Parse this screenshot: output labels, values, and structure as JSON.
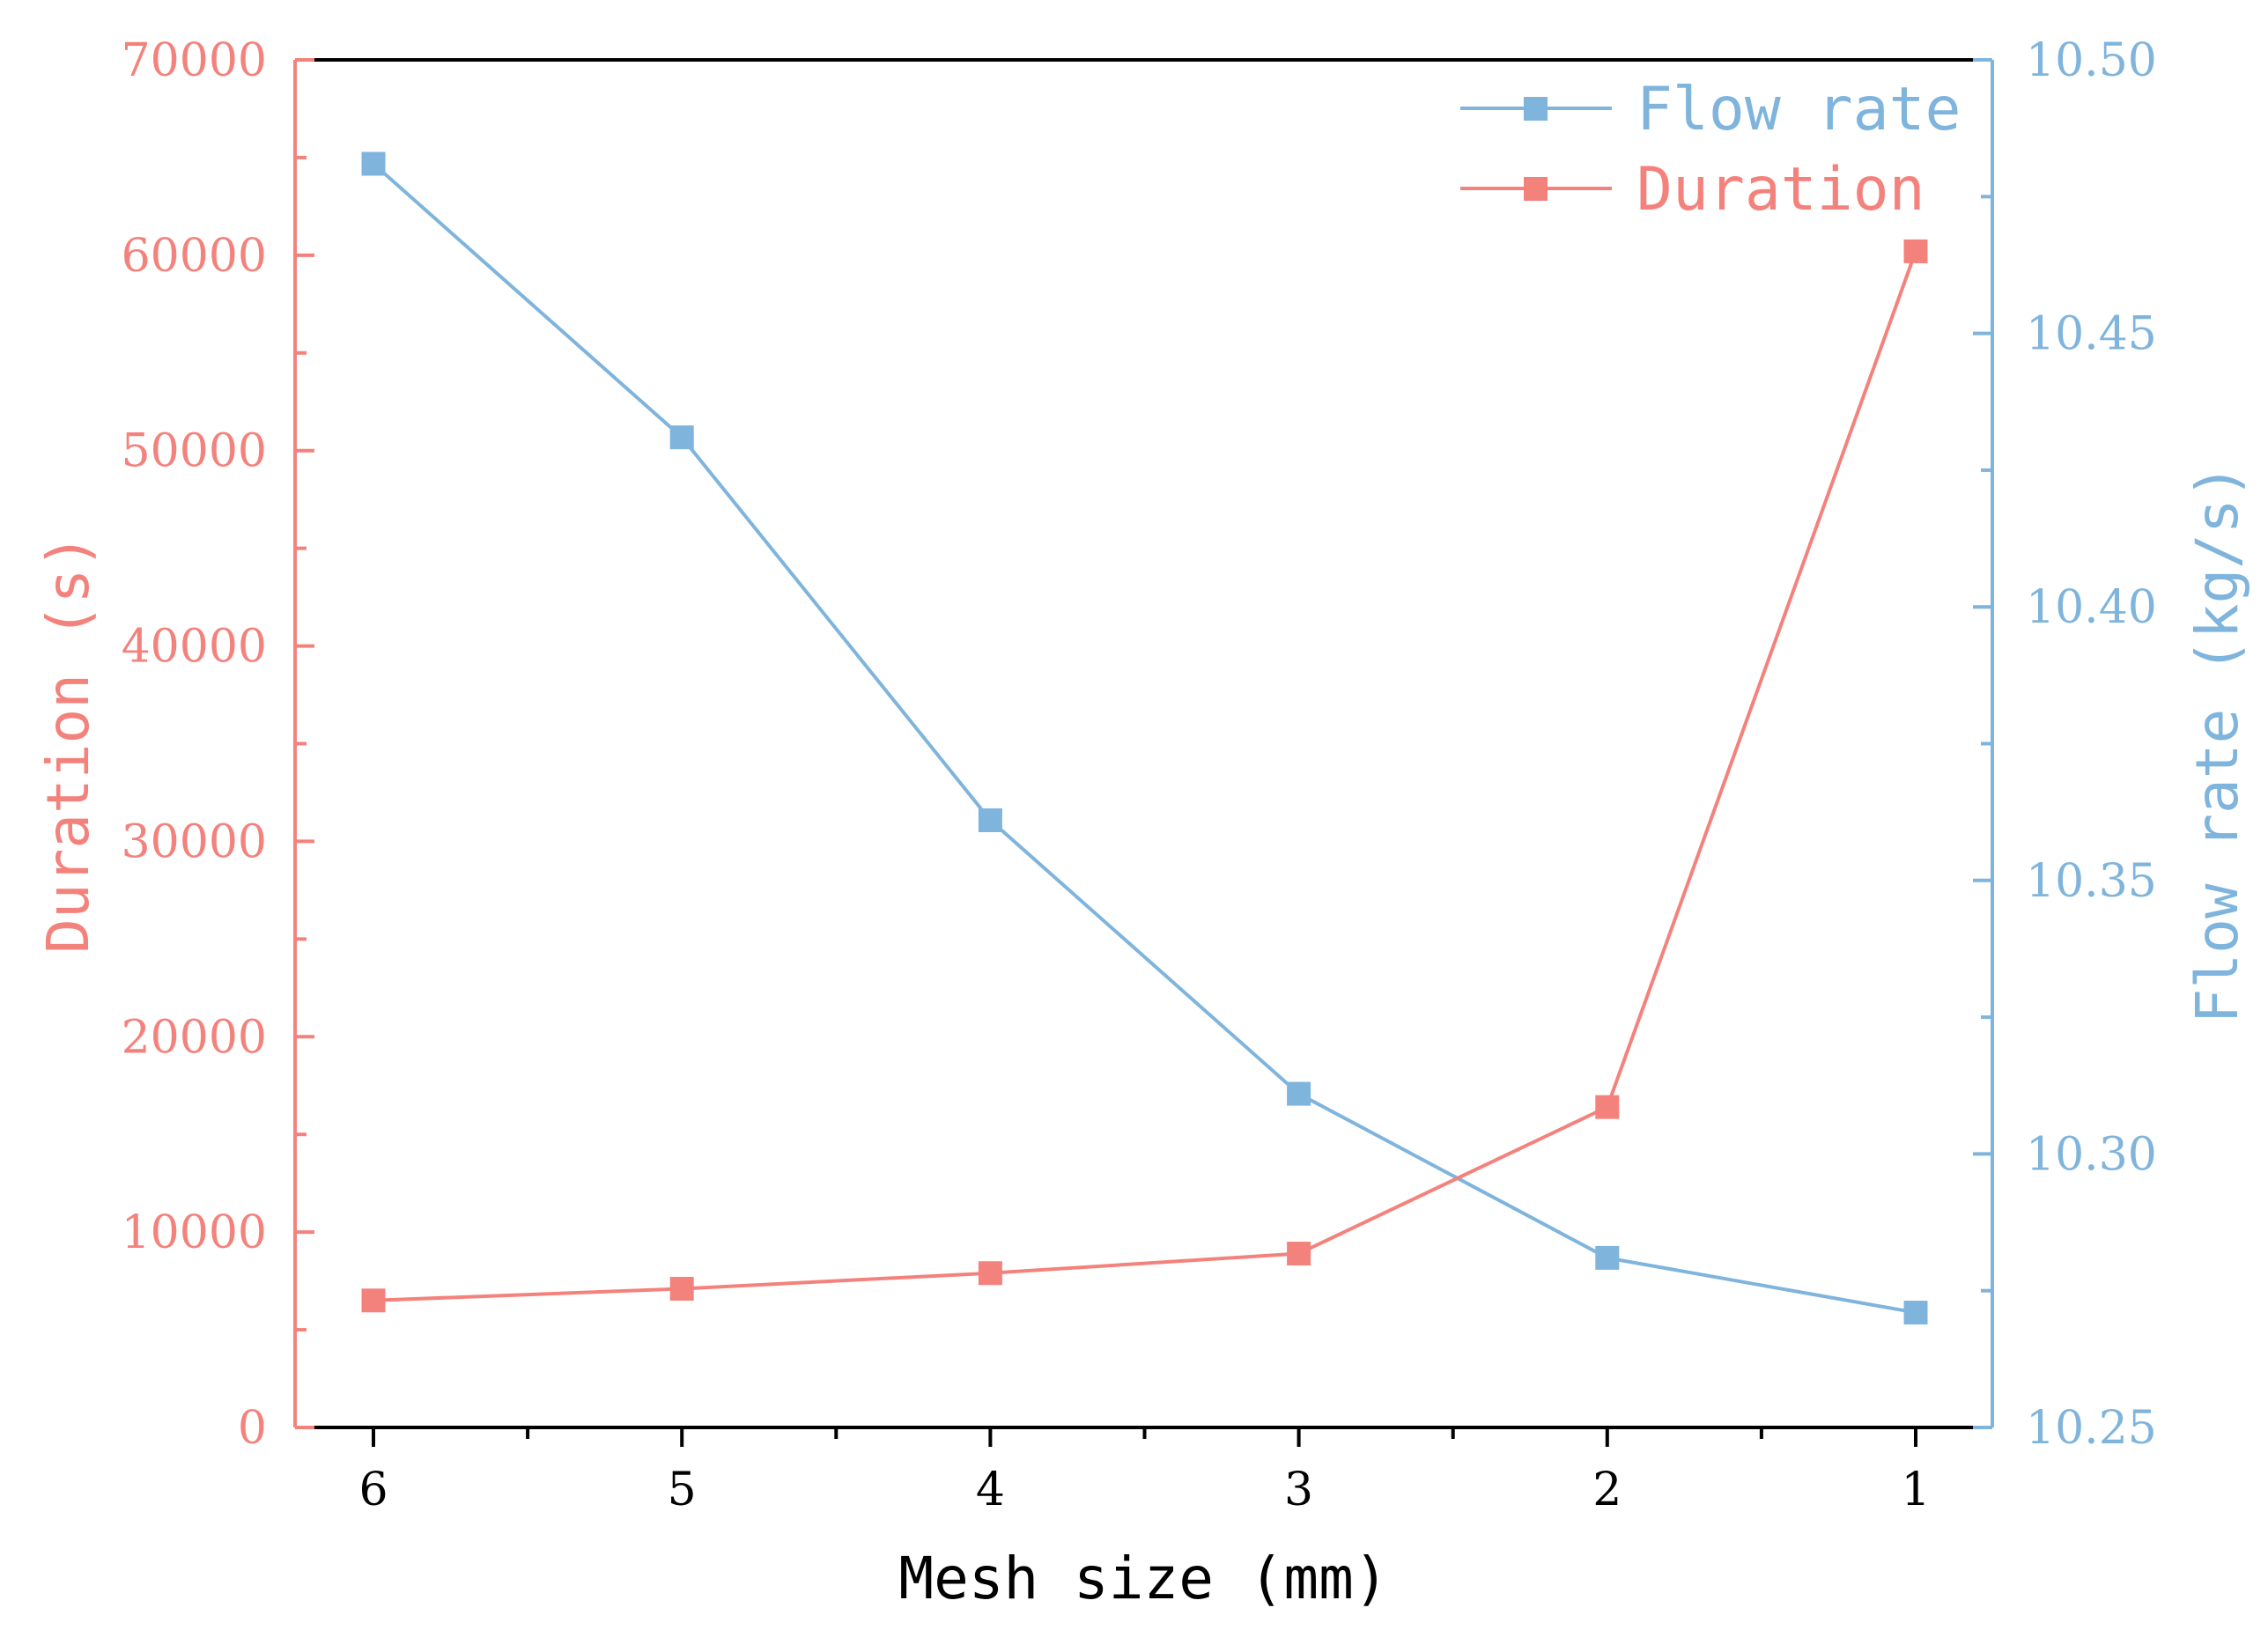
{
  "chart_data": {
    "type": "line",
    "xlabel": "Mesh size (mm)",
    "x": [
      6,
      5,
      4,
      3,
      2,
      1
    ],
    "y_left": {
      "label": "Duration (s)",
      "range": [
        0,
        70000
      ],
      "ticks": [
        "0",
        "10000",
        "20000",
        "30000",
        "40000",
        "50000",
        "60000",
        "70000"
      ],
      "color": "#f4827c"
    },
    "y_right": {
      "label": "Flow rate (kg/s)",
      "range": [
        10.25,
        10.5
      ],
      "ticks": [
        "10.25",
        "10.30",
        "10.35",
        "10.40",
        "10.45",
        "10.50"
      ],
      "color": "#7fb4dc"
    },
    "series": [
      {
        "name": "Flow rate",
        "axis": "right",
        "color": "#7fb4dc",
        "values": [
          10.481,
          10.431,
          10.361,
          10.311,
          10.281,
          10.271
        ]
      },
      {
        "name": "Duration",
        "axis": "left",
        "color": "#f4827c",
        "values": [
          6500,
          7100,
          7900,
          8900,
          16400,
          60200
        ]
      }
    ],
    "legend_position": "top-right",
    "grid": false
  }
}
